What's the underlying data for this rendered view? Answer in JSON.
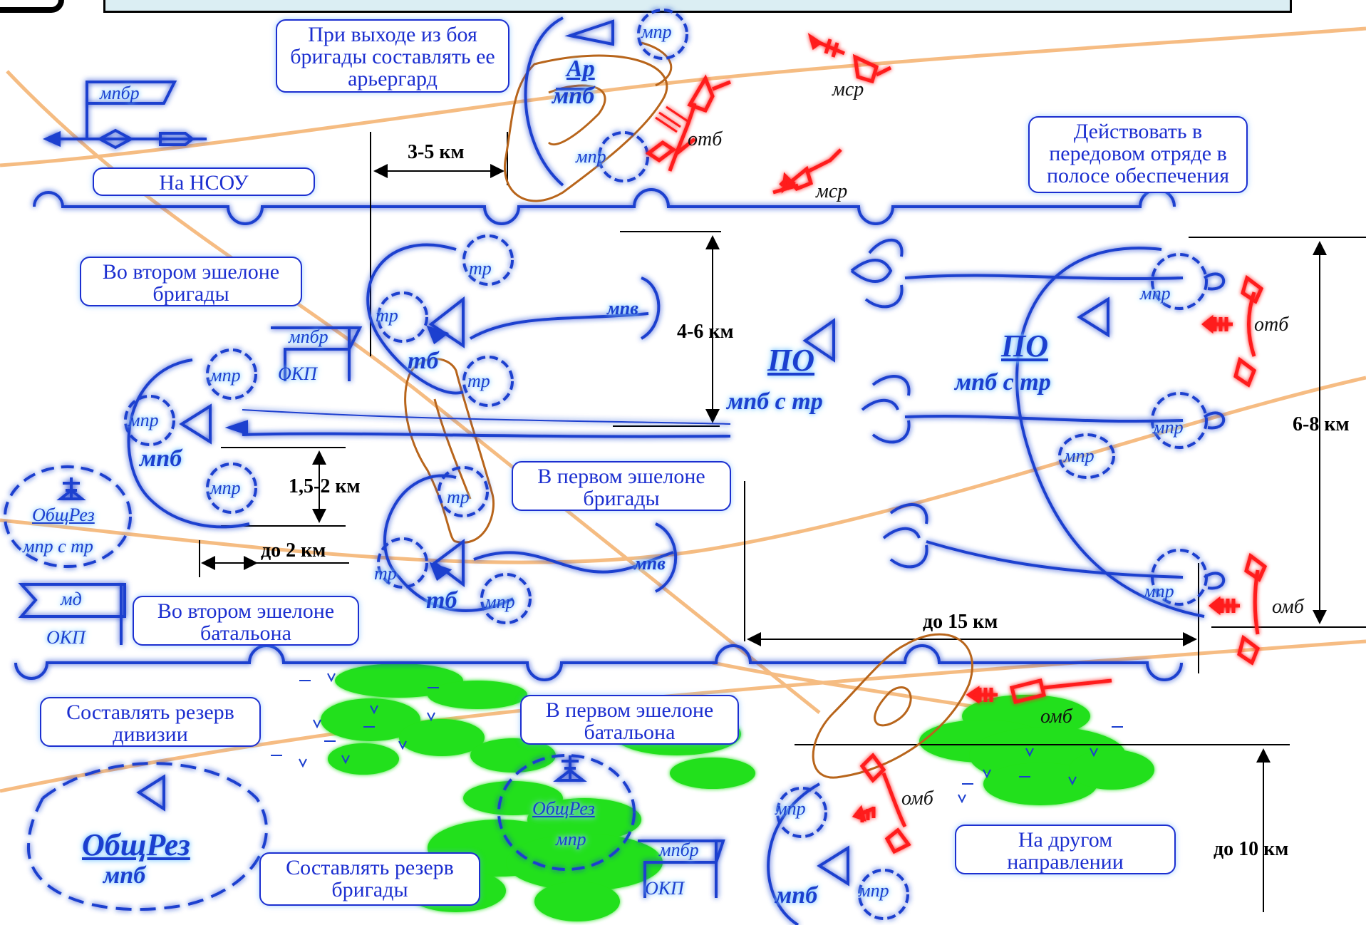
{
  "callouts": {
    "rearguard": "При выходе из боя бригады составлять ее арьергард",
    "nsou": "На НСОУ",
    "vanguard": "Действовать в передовом отряде в полосе обеспечения",
    "second_echelon_brigade": "Во втором эшелоне бригады",
    "first_echelon_brigade": "В первом эшелоне бригады",
    "second_echelon_battalion": "Во втором эшелоне батальона",
    "division_reserve": "Составлять резерв дивизии",
    "first_echelon_battalion": "В первом эшелоне батальона",
    "other_direction": "На другом направлении",
    "brigade_reserve": "Составлять резерв бригады"
  },
  "dimensions": {
    "d1": "3-5 км",
    "d2": "4-6 км",
    "d3": "1,5-2 км",
    "d4": "до 2 км",
    "d5": "до 15 км",
    "d6": "6-8 км",
    "d7": "до 10 км"
  },
  "units": {
    "mpbr": "мпбр",
    "mpr": "мпр",
    "tr": "тр",
    "mpv": "мпв",
    "mpb": "мпб",
    "tb": "тб",
    "okp": "ОКП",
    "md": "мд",
    "ar": "Ар",
    "po": "ПО",
    "mpb_s_tr": "мпб с тр",
    "obshrez": "ОбщРез",
    "mpr_s_tr": "мпр с тр"
  },
  "enemy": {
    "msr": "мср",
    "otb": "отб",
    "omb": "омб"
  },
  "colors": {
    "friendly": "#1b3fcf",
    "glow": "#8fd0ff",
    "enemy": "#ff1a1a",
    "road": "#f5b575",
    "rearguard_route": "#b8651b",
    "marsh": "#22e01a"
  }
}
